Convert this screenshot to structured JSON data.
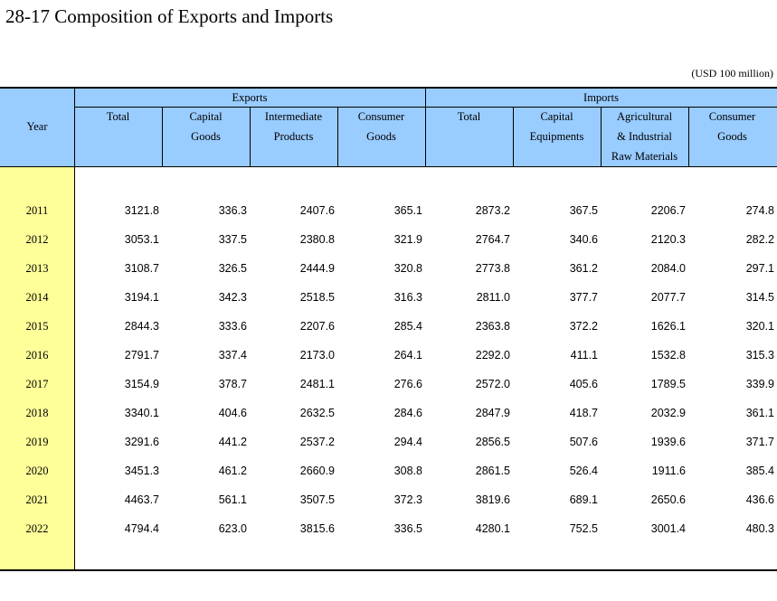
{
  "title": "28-17  Composition of Exports and Imports",
  "unit": "(USD 100 million)",
  "header": {
    "year": "Year",
    "exports": "Exports",
    "imports": "Imports",
    "export_cols": [
      [
        "Total"
      ],
      [
        "Capital",
        "Goods"
      ],
      [
        "Intermediate",
        "Products"
      ],
      [
        "Consumer",
        "Goods"
      ]
    ],
    "import_cols": [
      [
        "Total"
      ],
      [
        "Capital",
        "Equipments"
      ],
      [
        "Agricultural",
        "& Industrial",
        "Raw Materials"
      ],
      [
        "Consumer",
        "Goods"
      ]
    ]
  },
  "rows": [
    {
      "year": "2011",
      "values": [
        "3121.8",
        "336.3",
        "2407.6",
        "365.1",
        "2873.2",
        "367.5",
        "2206.7",
        "274.8"
      ]
    },
    {
      "year": "2012",
      "values": [
        "3053.1",
        "337.5",
        "2380.8",
        "321.9",
        "2764.7",
        "340.6",
        "2120.3",
        "282.2"
      ]
    },
    {
      "year": "2013",
      "values": [
        "3108.7",
        "326.5",
        "2444.9",
        "320.8",
        "2773.8",
        "361.2",
        "2084.0",
        "297.1"
      ]
    },
    {
      "year": "2014",
      "values": [
        "3194.1",
        "342.3",
        "2518.5",
        "316.3",
        "2811.0",
        "377.7",
        "2077.7",
        "314.5"
      ]
    },
    {
      "year": "2015",
      "values": [
        "2844.3",
        "333.6",
        "2207.6",
        "285.4",
        "2363.8",
        "372.2",
        "1626.1",
        "320.1"
      ]
    },
    {
      "year": "2016",
      "values": [
        "2791.7",
        "337.4",
        "2173.0",
        "264.1",
        "2292.0",
        "411.1",
        "1532.8",
        "315.3"
      ]
    },
    {
      "year": "2017",
      "values": [
        "3154.9",
        "378.7",
        "2481.1",
        "276.6",
        "2572.0",
        "405.6",
        "1789.5",
        "339.9"
      ]
    },
    {
      "year": "2018",
      "values": [
        "3340.1",
        "404.6",
        "2632.5",
        "284.6",
        "2847.9",
        "418.7",
        "2032.9",
        "361.1"
      ]
    },
    {
      "year": "2019",
      "values": [
        "3291.6",
        "441.2",
        "2537.2",
        "294.4",
        "2856.5",
        "507.6",
        "1939.6",
        "371.7"
      ]
    },
    {
      "year": "2020",
      "values": [
        "3451.3",
        "461.2",
        "2660.9",
        "308.8",
        "2861.5",
        "526.4",
        "1911.6",
        "385.4"
      ]
    },
    {
      "year": "2021",
      "values": [
        "4463.7",
        "561.1",
        "3507.5",
        "372.3",
        "3819.6",
        "689.1",
        "2650.6",
        "436.6"
      ]
    },
    {
      "year": "2022",
      "values": [
        "4794.4",
        "623.0",
        "3815.6",
        "336.5",
        "4280.1",
        "752.5",
        "3001.4",
        "480.3"
      ]
    }
  ]
}
